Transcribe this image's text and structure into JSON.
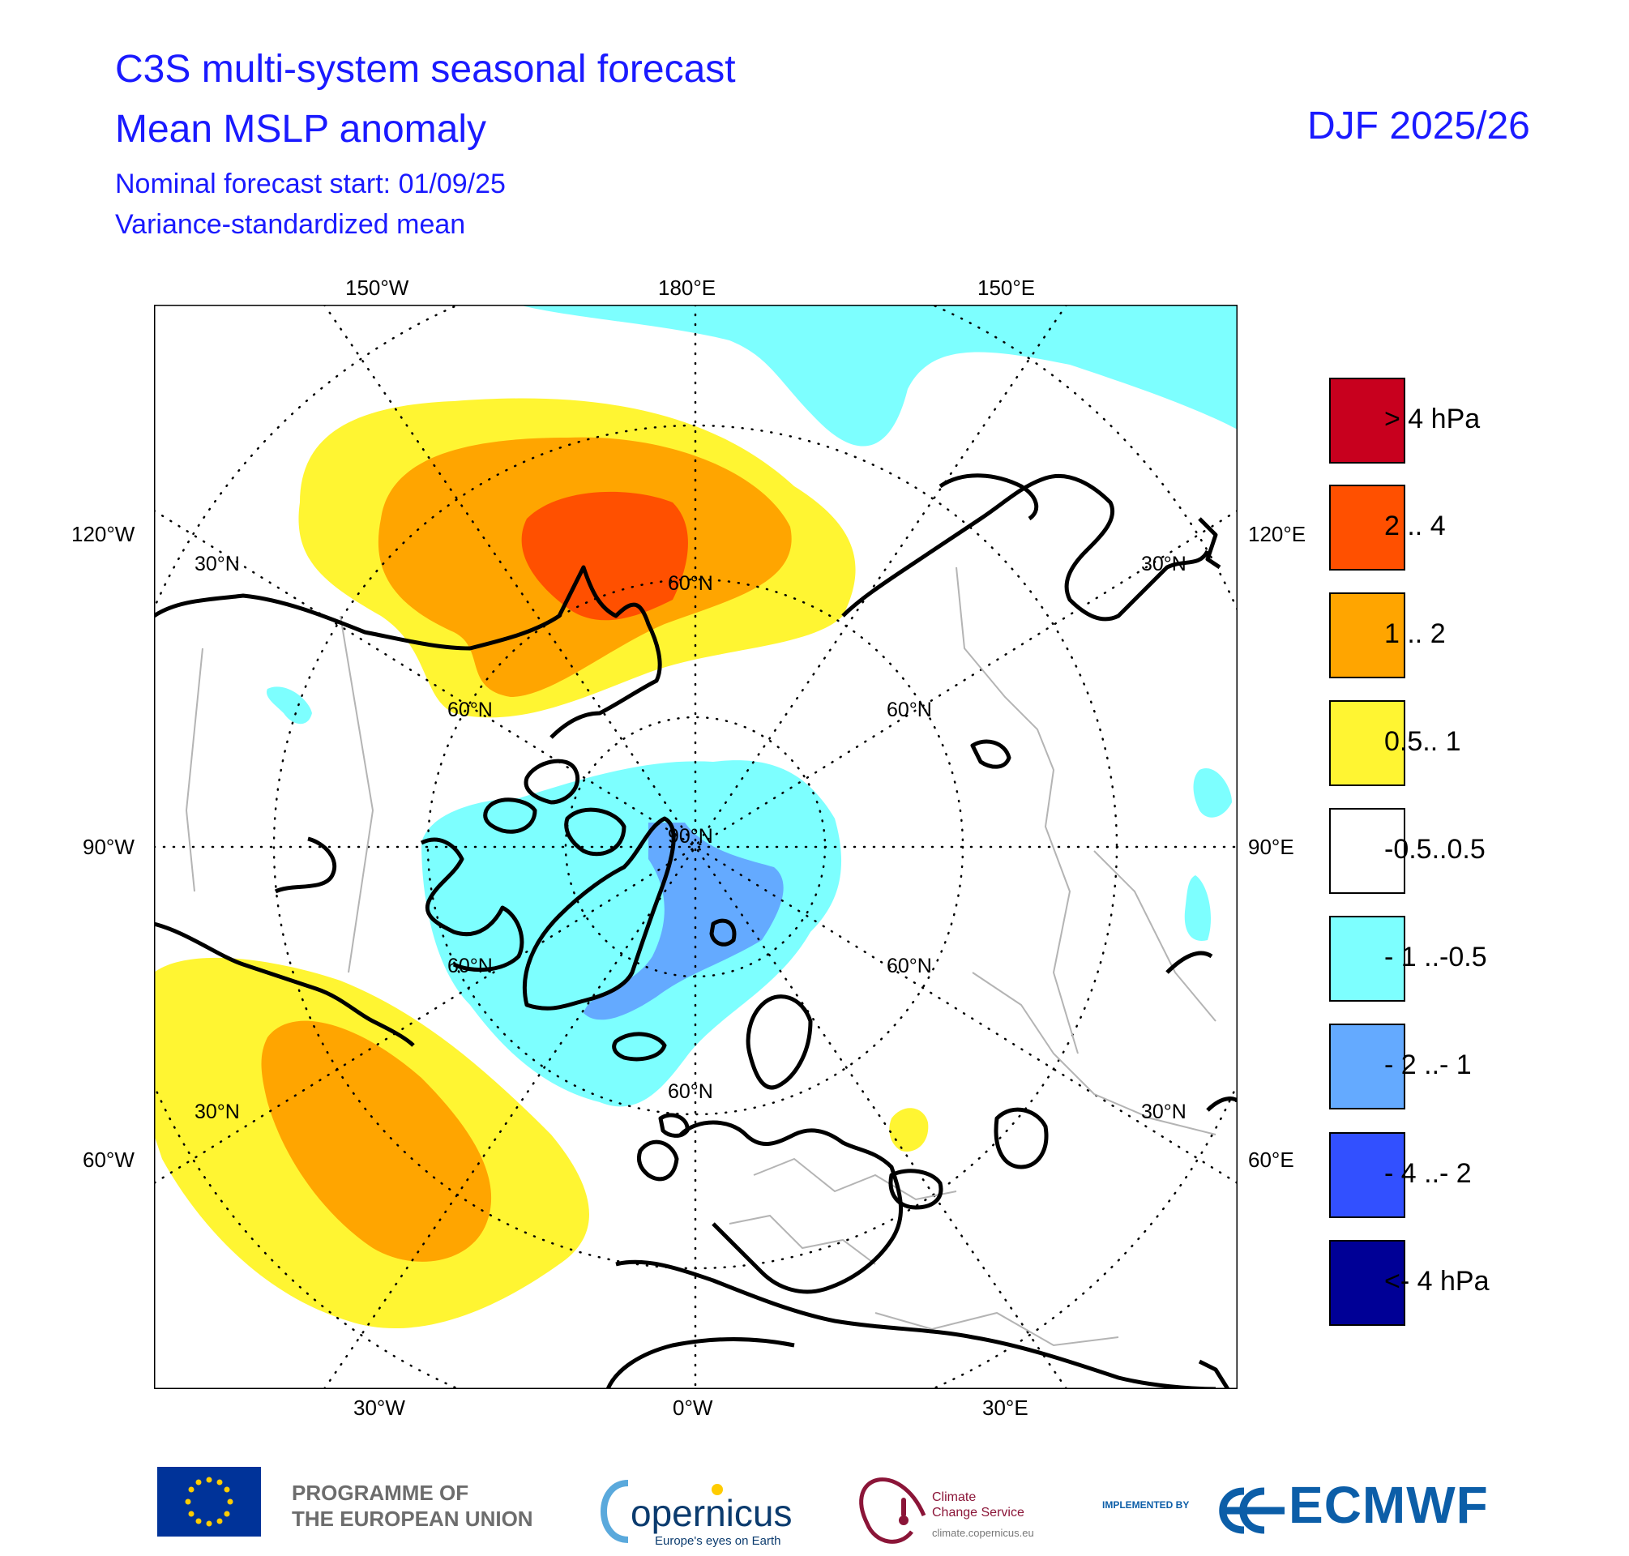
{
  "header": {
    "title_line1": "C3S multi-system seasonal forecast",
    "title_line2": "Mean MSLP anomaly",
    "subtitle_line1": "Nominal forecast start: 01/09/25",
    "subtitle_line2": "Variance-standardized mean",
    "season": "DJF 2025/26"
  },
  "map": {
    "projection": "polar stereographic, North Pole centred",
    "longitude_labels": {
      "top": [
        "150°W",
        "180°E",
        "150°E"
      ],
      "left": [
        "120°W",
        "90°W",
        "60°W"
      ],
      "right": [
        "120°E",
        "90°E",
        "60°E"
      ],
      "bottom": [
        "30°W",
        "0°W",
        "30°E"
      ]
    },
    "latitude_labels": {
      "thirty_n": "30°N",
      "sixty_n": "60°N",
      "ninety_n": "90°N"
    },
    "colors": {
      "land_outline": "#000000",
      "borders": "#b4b4b4",
      "graticule": "#000000"
    }
  },
  "legend": [
    {
      "label": ">  4 hPa",
      "color": "#c8001e"
    },
    {
      "label": "2 .. 4",
      "color": "#ff5000"
    },
    {
      "label": "1 .. 2",
      "color": "#ffa500"
    },
    {
      "label": "0.5.. 1",
      "color": "#fff532"
    },
    {
      "label": "-0.5..0.5",
      "color": "#ffffff"
    },
    {
      "label": "- 1 ..-0.5",
      "color": "#7dffff"
    },
    {
      "label": "- 2 ..- 1",
      "color": "#64aaff"
    },
    {
      "label": "- 4 ..- 2",
      "color": "#3250ff"
    },
    {
      "label": "<- 4 hPa",
      "color": "#000096"
    }
  ],
  "footer": {
    "eu_line1": "PROGRAMME OF",
    "eu_line2": "THE EUROPEAN UNION",
    "copernicus": "opernicus",
    "copernicus_tagline": "Europe's eyes on Earth",
    "c3s_line1": "Climate",
    "c3s_line2": "Change Service",
    "c3s_url": "climate.copernicus.eu",
    "implemented_by": "IMPLEMENTED BY",
    "ecmwf": "ECMWF",
    "eu_flag_color": "#003399",
    "eu_star_color": "#ffcc00"
  }
}
